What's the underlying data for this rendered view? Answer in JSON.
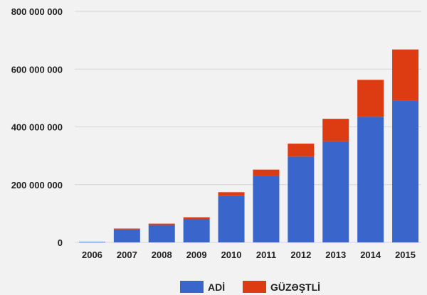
{
  "chart_data": {
    "type": "bar",
    "stacked": true,
    "categories": [
      "2006",
      "2007",
      "2008",
      "2009",
      "2010",
      "2011",
      "2012",
      "2013",
      "2014",
      "2015"
    ],
    "series": [
      {
        "name": "ADİ",
        "color": "#3a66cc",
        "values": [
          2000000,
          45000000,
          60000000,
          80000000,
          162000000,
          230000000,
          297000000,
          350000000,
          435000000,
          490000000
        ]
      },
      {
        "name": "GÜZƏŞTLİ",
        "color": "#dd3b12",
        "values": [
          0,
          3000000,
          5000000,
          7000000,
          12000000,
          22000000,
          45000000,
          78000000,
          128000000,
          178000000
        ]
      }
    ],
    "y_ticks": [
      0,
      200000000,
      400000000,
      600000000,
      800000000
    ],
    "y_tick_labels": [
      "0",
      "200 000 000",
      "400 000 000",
      "600 000 000",
      "800 000 000"
    ],
    "ylim": [
      0,
      800000000
    ],
    "grid": true,
    "legend_position": "bottom-center",
    "background": "#f2f2f2",
    "grid_color": "#d6d6d6"
  }
}
